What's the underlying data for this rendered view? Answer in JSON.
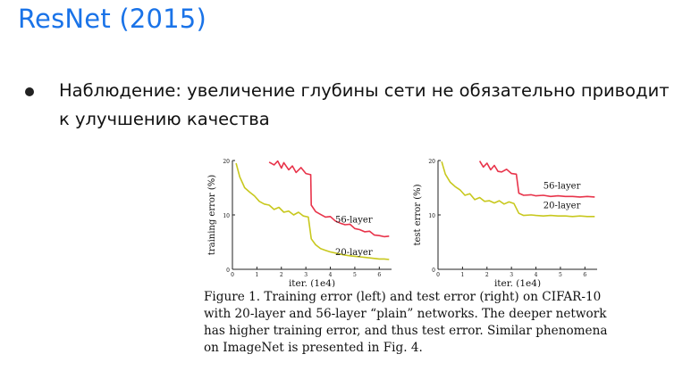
{
  "slide": {
    "title": "ResNet (2015)",
    "bullet": "Наблюдение: увеличение глубины сети не обязательно приводит к улучшению качества"
  },
  "figure": {
    "caption": "Figure 1. Training error (left) and test error (right) on CIFAR-10 with 20-layer and 56-layer “plain” networks. The deeper network has higher training error, and thus test error. Similar phenomena on ImageNet is presented in Fig. 4."
  },
  "colors": {
    "title": "#1a73e8",
    "series_56": "#e8334a",
    "series_20": "#c8c81e"
  },
  "chart_data": [
    {
      "type": "line",
      "xlabel": "iter. (1e4)",
      "ylabel": "training error (%)",
      "xlim": [
        0,
        6.5
      ],
      "ylim": [
        0,
        20
      ],
      "xticks": [
        0,
        1,
        2,
        3,
        4,
        5,
        6
      ],
      "yticks": [
        0,
        10,
        20
      ],
      "grid": false,
      "series": [
        {
          "name": "56-layer",
          "x": [
            1.5,
            1.7,
            1.85,
            2.0,
            2.1,
            2.3,
            2.45,
            2.6,
            2.8,
            3.0,
            3.2,
            3.22,
            3.4,
            3.6,
            3.8,
            4.0,
            4.2,
            4.4,
            4.6,
            4.8,
            5.0,
            5.2,
            5.4,
            5.6,
            5.8,
            6.0,
            6.2,
            6.4
          ],
          "y": [
            19.7,
            19.2,
            19.9,
            18.6,
            19.6,
            18.3,
            19.0,
            17.8,
            18.7,
            17.6,
            17.4,
            11.8,
            10.6,
            10.1,
            9.6,
            9.7,
            8.9,
            8.5,
            8.2,
            8.3,
            7.5,
            7.3,
            6.9,
            7.0,
            6.3,
            6.2,
            6.0,
            6.1
          ]
        },
        {
          "name": "20-layer",
          "x": [
            0.15,
            0.3,
            0.5,
            0.7,
            0.9,
            1.1,
            1.3,
            1.5,
            1.7,
            1.9,
            2.1,
            2.3,
            2.5,
            2.7,
            2.9,
            3.1,
            3.22,
            3.4,
            3.6,
            3.8,
            4.0,
            4.2,
            4.4,
            4.6,
            4.8,
            5.0,
            5.2,
            5.4,
            5.6,
            5.8,
            6.0,
            6.2,
            6.4
          ],
          "y": [
            19.5,
            17.0,
            15.0,
            14.2,
            13.5,
            12.5,
            12.0,
            11.8,
            11.0,
            11.4,
            10.5,
            10.7,
            10.0,
            10.5,
            9.8,
            9.6,
            5.6,
            4.5,
            3.8,
            3.5,
            3.2,
            3.0,
            2.8,
            2.6,
            2.5,
            2.4,
            2.3,
            2.2,
            2.1,
            2.0,
            1.9,
            1.9,
            1.8
          ]
        }
      ]
    },
    {
      "type": "line",
      "xlabel": "iter. (1e4)",
      "ylabel": "test error (%)",
      "xlim": [
        0,
        6.5
      ],
      "ylim": [
        0,
        20
      ],
      "xticks": [
        0,
        1,
        2,
        3,
        4,
        5,
        6
      ],
      "yticks": [
        0,
        10,
        20
      ],
      "grid": false,
      "series": [
        {
          "name": "56-layer",
          "x": [
            1.7,
            1.85,
            2.0,
            2.15,
            2.3,
            2.45,
            2.6,
            2.8,
            3.0,
            3.2,
            3.3,
            3.5,
            3.8,
            4.0,
            4.3,
            4.6,
            4.9,
            5.2,
            5.5,
            5.8,
            6.1,
            6.4
          ],
          "y": [
            19.9,
            18.8,
            19.5,
            18.3,
            19.1,
            18.0,
            17.9,
            18.4,
            17.6,
            17.5,
            14.0,
            13.6,
            13.7,
            13.5,
            13.6,
            13.4,
            13.5,
            13.4,
            13.4,
            13.3,
            13.4,
            13.3
          ]
        },
        {
          "name": "20-layer",
          "x": [
            0.15,
            0.3,
            0.5,
            0.7,
            0.9,
            1.1,
            1.3,
            1.5,
            1.7,
            1.9,
            2.1,
            2.3,
            2.5,
            2.7,
            2.9,
            3.1,
            3.3,
            3.5,
            3.8,
            4.0,
            4.3,
            4.6,
            4.9,
            5.2,
            5.5,
            5.8,
            6.1,
            6.4
          ],
          "y": [
            19.8,
            17.5,
            16.0,
            15.2,
            14.6,
            13.6,
            13.9,
            12.8,
            13.2,
            12.5,
            12.6,
            12.2,
            12.6,
            12.0,
            12.4,
            12.1,
            10.3,
            9.9,
            10.0,
            9.9,
            9.8,
            9.9,
            9.8,
            9.8,
            9.7,
            9.8,
            9.7,
            9.7
          ]
        }
      ]
    }
  ]
}
